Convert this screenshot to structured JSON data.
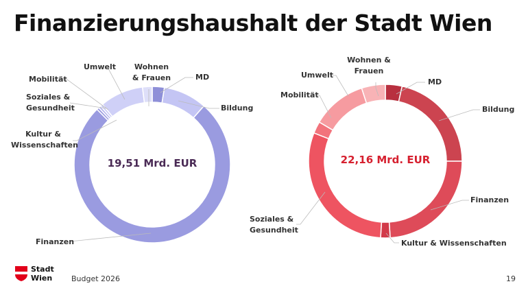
{
  "title": "Finanzierungshaushalt der Stadt Wien",
  "footer": {
    "logo_text_1": "Stadt",
    "logo_text_2": "Wien",
    "text": "Budget 2026",
    "page": "19"
  },
  "chart_data": [
    {
      "type": "pie",
      "donut": true,
      "center_label": "19,51 Mrd. EUR",
      "center_color": "#4a2a55",
      "categories": [
        "MD",
        "Bildung",
        "Finanzen",
        "Kultur & Wissenschaften",
        "Soziales & Gesundheit",
        "Mobilität",
        "Umwelt",
        "Wohnen & Frauen"
      ],
      "values": [
        2.5,
        9,
        76,
        0.5,
        0.5,
        0.5,
        9,
        2
      ],
      "colors": [
        "#8e8fd8",
        "#c4c5f4",
        "#9a9be0",
        "#9a9be0",
        "#b6b7ee",
        "#c9caf6",
        "#cfd0f7",
        "#dedff9"
      ]
    },
    {
      "type": "pie",
      "donut": true,
      "center_label": "22,16 Mrd. EUR",
      "center_color": "#d6202f",
      "categories": [
        "MD",
        "Bildung",
        "Finanzen",
        "Kultur & Wissenschaften",
        "Soziales & Gesundheit",
        "Mobilität",
        "Umwelt",
        "Wohnen & Frauen"
      ],
      "values": [
        3.5,
        21.5,
        24,
        2,
        30,
        2.5,
        11.5,
        5
      ],
      "colors": [
        "#b8303f",
        "#cc4450",
        "#de4b59",
        "#d23a49",
        "#ee5461",
        "#f2737c",
        "#f69ba0",
        "#f8b3b6"
      ]
    }
  ]
}
